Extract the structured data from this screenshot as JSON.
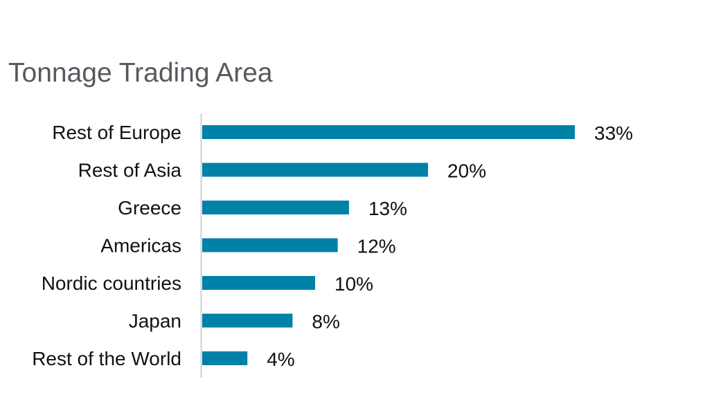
{
  "chart_data": {
    "type": "bar",
    "orientation": "horizontal",
    "title": "Tonnage Trading Area",
    "categories": [
      "Rest of Europe",
      "Rest of Asia",
      "Greece",
      "Americas",
      "Nordic countries",
      "Japan",
      "Rest of the World"
    ],
    "values": [
      33,
      20,
      13,
      12,
      10,
      8,
      4
    ],
    "value_labels": [
      "33%",
      "20%",
      "13%",
      "12%",
      "10%",
      "8%",
      "4%"
    ],
    "unit": "%",
    "xlim": [
      0,
      33
    ],
    "grid": false,
    "legend": "none",
    "bar_color": "#0081a7"
  }
}
